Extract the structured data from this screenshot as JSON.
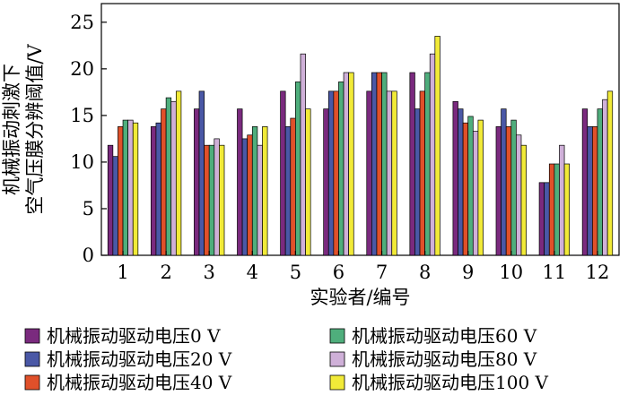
{
  "chart_data": {
    "type": "bar",
    "xlabel": "实验者/编号",
    "ylabel": [
      "机械振动刺激下",
      "空气压膜分辨阈值/V"
    ],
    "ylim": [
      0,
      27
    ],
    "yticks": [
      0,
      5,
      10,
      15,
      20,
      25
    ],
    "categories": [
      "1",
      "2",
      "3",
      "4",
      "5",
      "6",
      "7",
      "8",
      "9",
      "10",
      "11",
      "12"
    ],
    "legend_position": "bottom",
    "series": [
      {
        "name": "机械振动驱动电压0 V",
        "color": "#7a2a7e",
        "values": [
          11.8,
          13.8,
          15.7,
          15.7,
          17.6,
          15.7,
          17.6,
          19.6,
          16.5,
          13.8,
          7.8,
          15.7
        ]
      },
      {
        "name": "机械振动驱动电压20 V",
        "color": "#4a58a6",
        "values": [
          10.6,
          14.2,
          17.6,
          12.5,
          13.8,
          17.6,
          19.6,
          15.7,
          15.7,
          15.7,
          7.8,
          13.8
        ]
      },
      {
        "name": "机械振动驱动电压40 V",
        "color": "#e0502a",
        "values": [
          13.8,
          15.7,
          11.8,
          12.9,
          14.7,
          17.6,
          19.6,
          17.6,
          14.2,
          13.8,
          9.8,
          13.8
        ]
      },
      {
        "name": "机械振动驱动电压60 V",
        "color": "#4fae7c",
        "values": [
          14.5,
          16.9,
          11.8,
          13.8,
          18.6,
          18.6,
          19.6,
          19.6,
          14.9,
          14.5,
          9.8,
          15.7
        ]
      },
      {
        "name": "机械振动驱动电压80 V",
        "color": "#cfb0d8",
        "values": [
          14.5,
          16.5,
          12.5,
          11.8,
          21.6,
          19.6,
          17.6,
          21.6,
          13.3,
          12.9,
          11.8,
          16.7
        ]
      },
      {
        "name": "机械振动驱动电压100 V",
        "color": "#f1ea38",
        "values": [
          14.2,
          17.6,
          11.8,
          13.8,
          15.7,
          19.6,
          17.6,
          23.5,
          14.5,
          11.8,
          9.8,
          17.6
        ]
      }
    ]
  }
}
